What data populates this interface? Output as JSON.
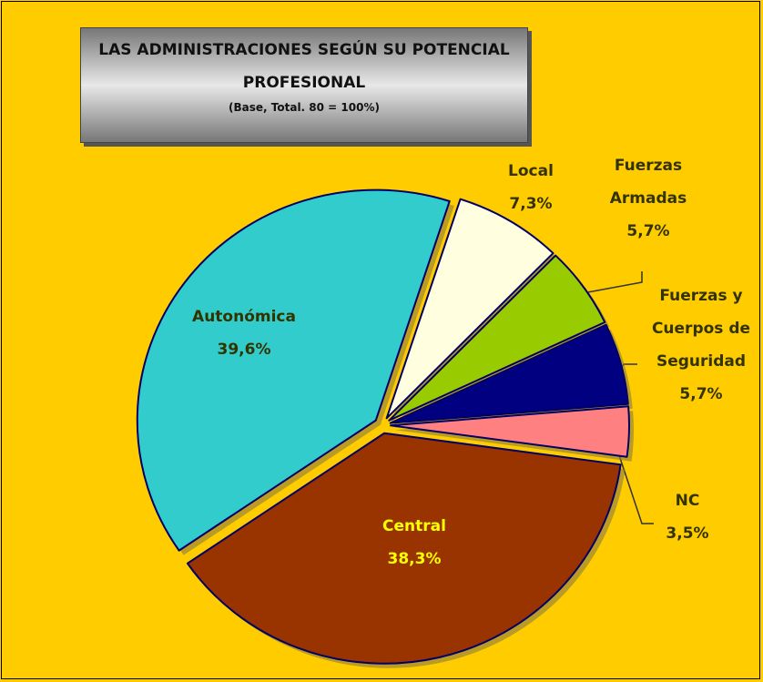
{
  "chart_data": {
    "type": "pie",
    "title": "LAS ADMINISTRACIONES SEGÚN SU POTENCIAL PROFESIONAL",
    "subtitle": "(Base, Total. 80 = 100%)",
    "categories": [
      "Local",
      "Fuerzas Armadas",
      "Fuerzas y Cuerpos de Seguridad",
      "NC",
      "Central",
      "Autonómica"
    ],
    "values": [
      7.3,
      5.7,
      5.7,
      3.5,
      38.3,
      39.6
    ],
    "value_labels": [
      "7,3%",
      "5,7%",
      "5,7%",
      "3,5%",
      "38,3%",
      "39,6%"
    ],
    "colors": [
      "#ffffe0",
      "#99cc00",
      "#000080",
      "#ff8080",
      "#993300",
      "#33cccc"
    ]
  }
}
